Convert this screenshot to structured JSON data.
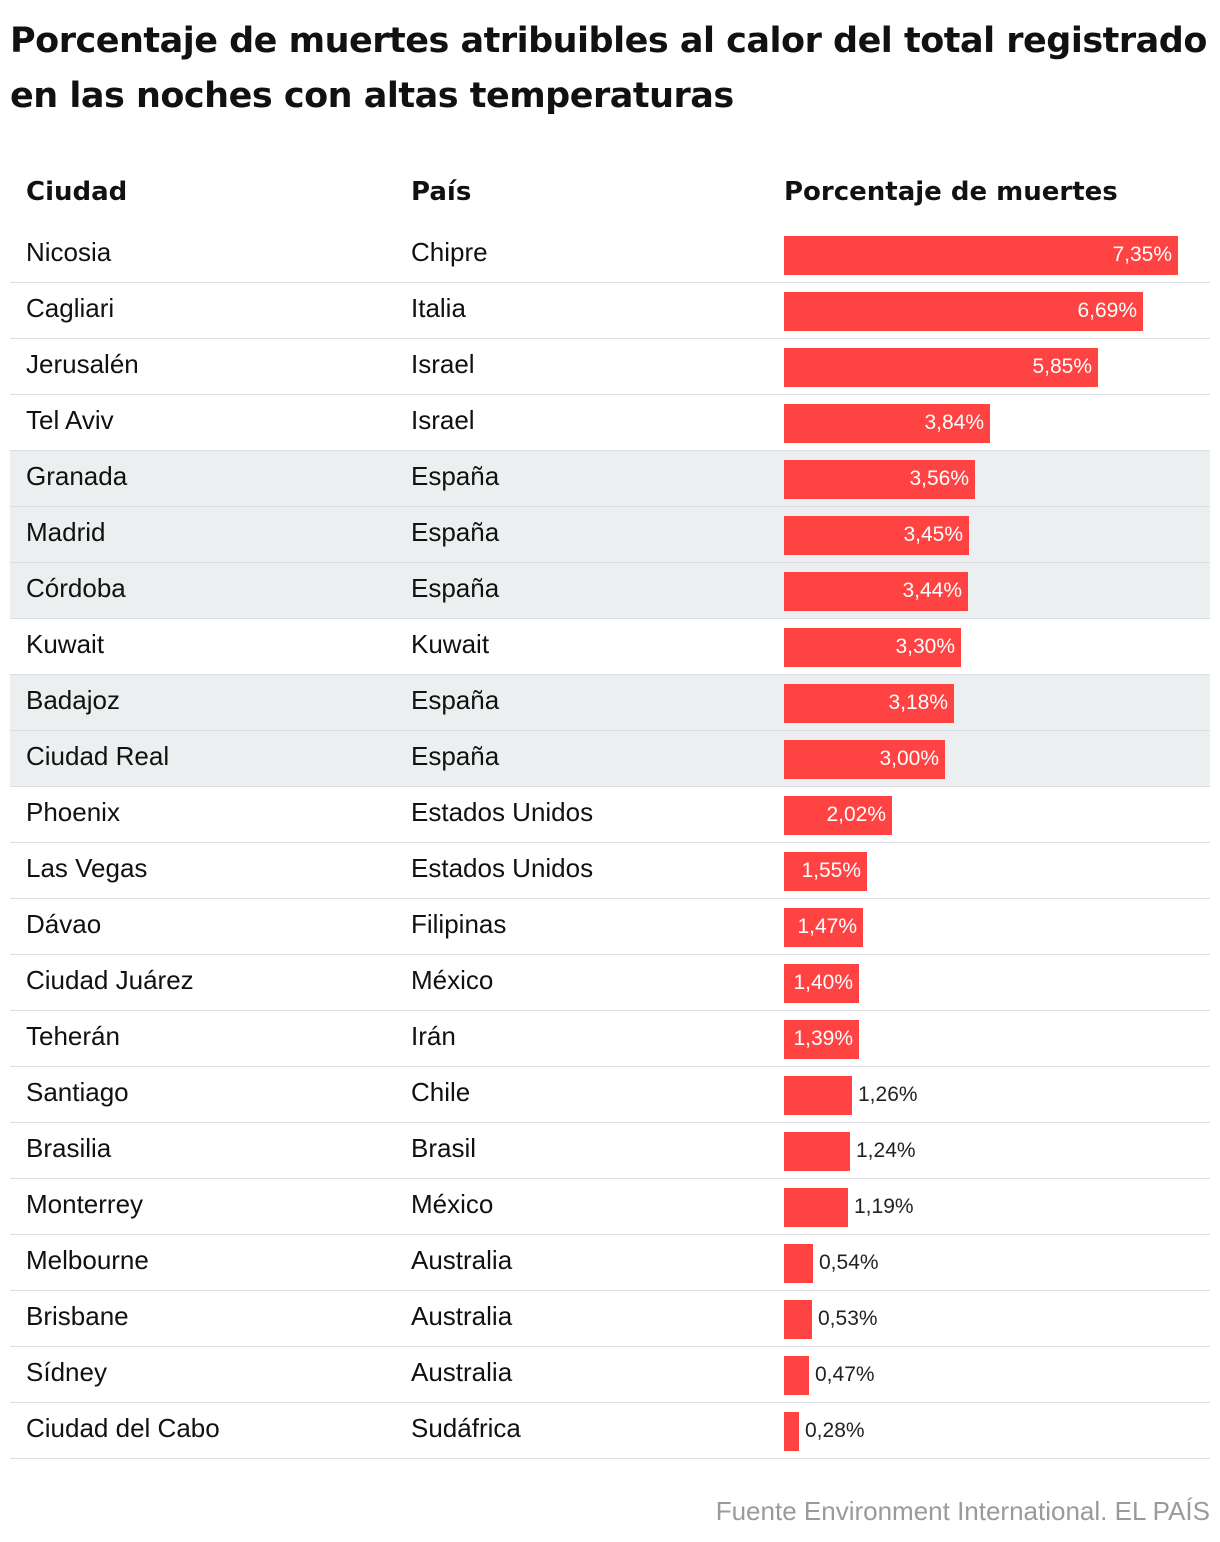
{
  "chart_data": {
    "type": "table",
    "title": "Porcentaje de muertes atribuibles al calor del total registrado en las noches con altas temperaturas",
    "columns": [
      "Ciudad",
      "País",
      "Porcentaje de muertes"
    ],
    "xlim": [
      0,
      7.35
    ],
    "bar_color": "#ff4343",
    "highlight_color": "#eceff0",
    "rows": [
      {
        "city": "Nicosia",
        "country": "Chipre",
        "value": 7.35,
        "label": "7,35%",
        "highlight": false
      },
      {
        "city": "Cagliari",
        "country": "Italia",
        "value": 6.69,
        "label": "6,69%",
        "highlight": false
      },
      {
        "city": "Jerusalén",
        "country": "Israel",
        "value": 5.85,
        "label": "5,85%",
        "highlight": false
      },
      {
        "city": "Tel Aviv",
        "country": "Israel",
        "value": 3.84,
        "label": "3,84%",
        "highlight": false
      },
      {
        "city": "Granada",
        "country": "España",
        "value": 3.56,
        "label": "3,56%",
        "highlight": true
      },
      {
        "city": "Madrid",
        "country": "España",
        "value": 3.45,
        "label": "3,45%",
        "highlight": true
      },
      {
        "city": "Córdoba",
        "country": "España",
        "value": 3.44,
        "label": "3,44%",
        "highlight": true
      },
      {
        "city": "Kuwait",
        "country": "Kuwait",
        "value": 3.3,
        "label": "3,30%",
        "highlight": false
      },
      {
        "city": "Badajoz",
        "country": "España",
        "value": 3.18,
        "label": "3,18%",
        "highlight": true
      },
      {
        "city": "Ciudad Real",
        "country": "España",
        "value": 3.0,
        "label": "3,00%",
        "highlight": true
      },
      {
        "city": "Phoenix",
        "country": "Estados Unidos",
        "value": 2.02,
        "label": "2,02%",
        "highlight": false
      },
      {
        "city": "Las Vegas",
        "country": "Estados Unidos",
        "value": 1.55,
        "label": "1,55%",
        "highlight": false
      },
      {
        "city": "Dávao",
        "country": "Filipinas",
        "value": 1.47,
        "label": "1,47%",
        "highlight": false
      },
      {
        "city": "Ciudad Juárez",
        "country": "México",
        "value": 1.4,
        "label": "1,40%",
        "highlight": false
      },
      {
        "city": "Teherán",
        "country": "Irán",
        "value": 1.39,
        "label": "1,39%",
        "highlight": false
      },
      {
        "city": "Santiago",
        "country": "Chile",
        "value": 1.26,
        "label": "1,26%",
        "highlight": false
      },
      {
        "city": "Brasilia",
        "country": "Brasil",
        "value": 1.24,
        "label": "1,24%",
        "highlight": false
      },
      {
        "city": "Monterrey",
        "country": "México",
        "value": 1.19,
        "label": "1,19%",
        "highlight": false
      },
      {
        "city": "Melbourne",
        "country": "Australia",
        "value": 0.54,
        "label": "0,54%",
        "highlight": false
      },
      {
        "city": "Brisbane",
        "country": "Australia",
        "value": 0.53,
        "label": "0,53%",
        "highlight": false
      },
      {
        "city": "Sídney",
        "country": "Australia",
        "value": 0.47,
        "label": "0,47%",
        "highlight": false
      },
      {
        "city": "Ciudad del Cabo",
        "country": "Sudáfrica",
        "value": 0.28,
        "label": "0,28%",
        "highlight": false
      }
    ],
    "source": "Fuente Environment International. EL PAÍS"
  }
}
